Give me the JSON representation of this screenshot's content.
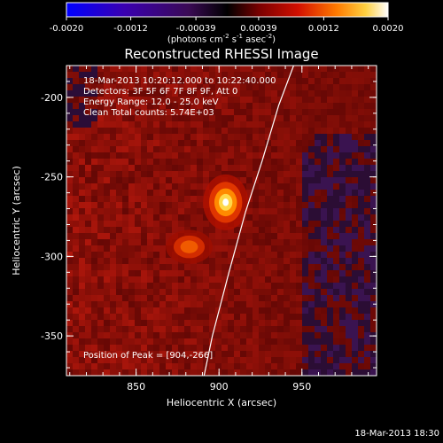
{
  "chart_data": {
    "type": "heatmap",
    "title": "Reconstructed RHESSI Image",
    "xlabel": "Heliocentric X (arcsec)",
    "ylabel": "Heliocentric Y (arcsec)",
    "xlim": [
      808,
      995
    ],
    "ylim": [
      -375,
      -180
    ],
    "x_ticks": [
      "850",
      "900",
      "950"
    ],
    "x_tick_values": [
      850,
      900,
      950
    ],
    "y_ticks": [
      "-200",
      "-250",
      "-300",
      "-350"
    ],
    "y_tick_values": [
      -200,
      -250,
      -300,
      -350
    ],
    "colorbar": {
      "min": -0.002,
      "max": 0.002,
      "tick_labels": [
        "-0.0020",
        "-0.0012",
        "-0.00039",
        "0.00039",
        "0.0012",
        "0.0020"
      ],
      "tick_values": [
        -0.002,
        -0.0012,
        -0.00039,
        0.00039,
        0.0012,
        0.002
      ],
      "units": "(photons cm-2 s-1 asec-2)"
    },
    "annotations": {
      "time_range": "18-Mar-2013 10:20:12.000 to 10:22:40.000",
      "detectors": "Detectors: 3F 5F 6F 7F 8F 9F, Att 0",
      "energy_range": "Energy Range: 12.0 - 25.0 keV",
      "clean_counts": "Clean    Total counts: 5.74E+03",
      "peak_position": "Position of Peak = [904,-266]"
    },
    "sources": [
      {
        "x": 904,
        "y": -266,
        "peak": 0.002
      },
      {
        "x": 882,
        "y": -294,
        "peak": 0.0012
      }
    ],
    "limb_curve": [
      {
        "x": 945,
        "y": -180
      },
      {
        "x": 936,
        "y": -205
      },
      {
        "x": 926,
        "y": -240
      },
      {
        "x": 916,
        "y": -272
      },
      {
        "x": 906,
        "y": -310
      },
      {
        "x": 896,
        "y": -350
      },
      {
        "x": 891,
        "y": -375
      }
    ]
  },
  "footer_timestamp": "18-Mar-2013 18:30"
}
